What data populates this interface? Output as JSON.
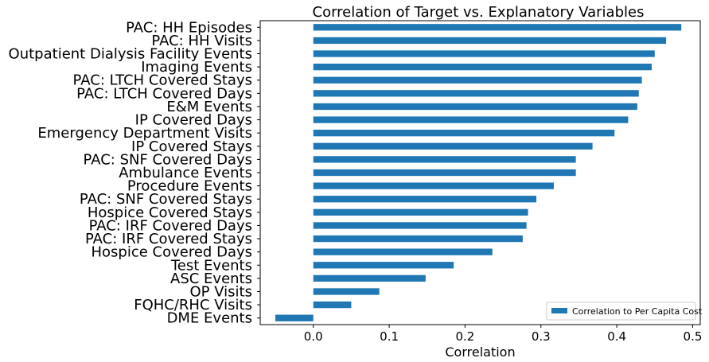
{
  "chart_data": {
    "type": "bar",
    "orientation": "horizontal",
    "title": "Correlation of Target vs. Explanatory Variables",
    "xlabel": "Correlation",
    "ylabel": "",
    "xlim": [
      -0.07,
      0.51
    ],
    "xticks": [
      0.0,
      0.1,
      0.2,
      0.3,
      0.4,
      0.5
    ],
    "xtick_labels": [
      "0.0",
      "0.1",
      "0.2",
      "0.3",
      "0.4",
      "0.5"
    ],
    "grid": false,
    "legend_position": "bottom-right",
    "bar_color": "#1f77b4",
    "categories": [
      "PAC: HH Episodes",
      "PAC: HH Visits",
      "Outpatient Dialysis Facility Events",
      "Imaging Events",
      "PAC: LTCH Covered Stays",
      "PAC: LTCH Covered Days",
      "E&M Events",
      "IP Covered Days",
      "Emergency Department Visits",
      "IP Covered Stays",
      "PAC: SNF Covered Days",
      "Ambulance Events",
      "Procedure Events",
      "PAC: SNF Covered Stays",
      "Hospice Covered Stays",
      "PAC: IRF Covered Days",
      "PAC: IRF Covered Stays",
      "Hospice Covered Days",
      "Test Events",
      "ASC Events",
      "OP Visits",
      "FQHC/RHC Visits",
      "DME Events"
    ],
    "series": [
      {
        "name": "Correlation to Per Capita Cost",
        "values": [
          0.485,
          0.465,
          0.45,
          0.446,
          0.433,
          0.429,
          0.427,
          0.415,
          0.397,
          0.368,
          0.346,
          0.346,
          0.317,
          0.294,
          0.283,
          0.281,
          0.276,
          0.236,
          0.185,
          0.148,
          0.087,
          0.05,
          -0.05
        ]
      }
    ]
  }
}
